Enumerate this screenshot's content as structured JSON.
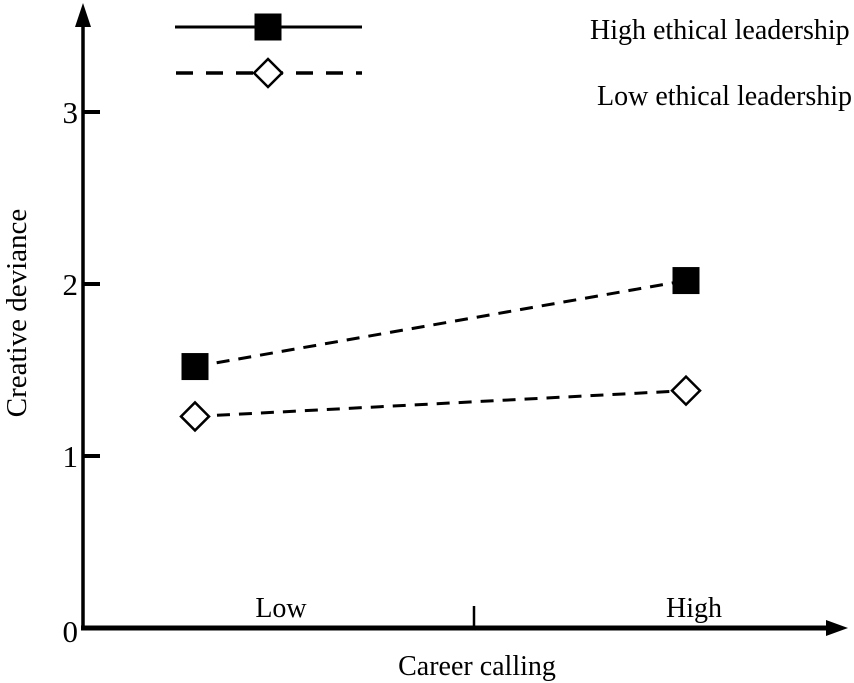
{
  "colors": {
    "foreground": "#000000",
    "background": "#ffffff"
  },
  "chart_data": {
    "type": "line",
    "title": "",
    "xlabel": "Career calling",
    "ylabel": "Creative deviance",
    "categories": [
      "Low",
      "High"
    ],
    "x_tick_labels": [
      "Low",
      "High"
    ],
    "y_ticks": [
      0,
      1,
      2,
      3
    ],
    "ylim": [
      0,
      3.6
    ],
    "grid": false,
    "legend_position": "top-inside",
    "series": [
      {
        "name": "High ethical leadership",
        "values": [
          1.52,
          2.02
        ],
        "marker": "filled-square",
        "plot_line_style": "dashed",
        "legend_line_style": "solid"
      },
      {
        "name": "Low ethical leadership",
        "values": [
          1.23,
          1.38
        ],
        "marker": "open-diamond",
        "plot_line_style": "dashed",
        "legend_line_style": "dashed"
      }
    ]
  }
}
